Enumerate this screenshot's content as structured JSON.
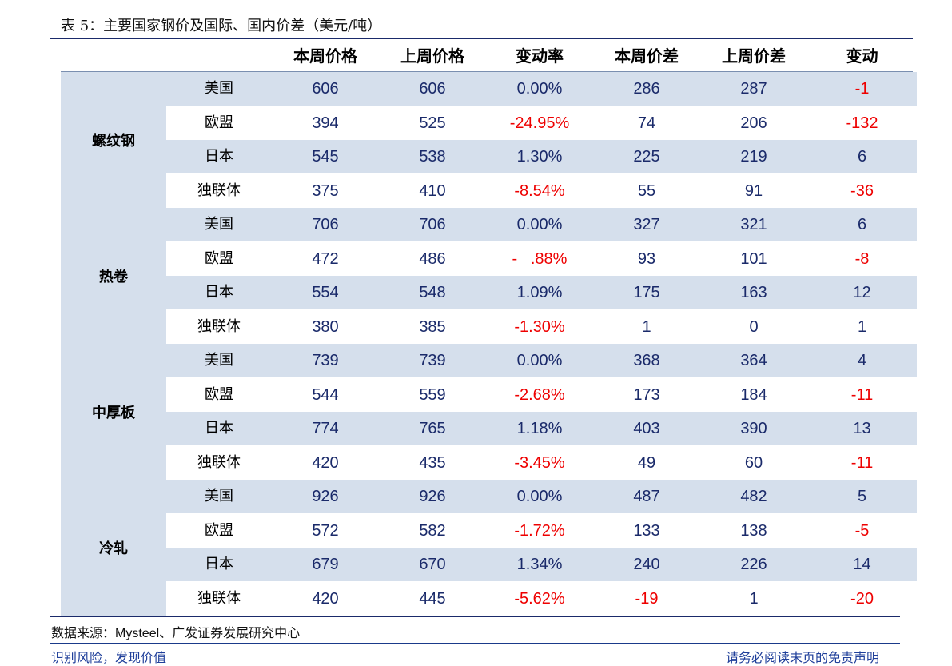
{
  "title": "表 5：主要国家钢价及国际、国内价差（美元/吨）",
  "columns": [
    "本周价格",
    "上周价格",
    "变动率",
    "本周价差",
    "上周价差",
    "变动"
  ],
  "groups": [
    {
      "name": "螺纹钢",
      "rows": [
        {
          "country": "美国",
          "this_price": "606",
          "last_price": "606",
          "change_rate": "0.00%",
          "this_spread": "286",
          "last_spread": "287",
          "change": "-1"
        },
        {
          "country": "欧盟",
          "this_price": "394",
          "last_price": "525",
          "change_rate": "-24.95%",
          "this_spread": "74",
          "last_spread": "206",
          "change": "-132"
        },
        {
          "country": "日本",
          "this_price": "545",
          "last_price": "538",
          "change_rate": "1.30%",
          "this_spread": "225",
          "last_spread": "219",
          "change": "6"
        },
        {
          "country": "独联体",
          "this_price": "375",
          "last_price": "410",
          "change_rate": "-8.54%",
          "this_spread": "55",
          "last_spread": "91",
          "change": "-36"
        }
      ]
    },
    {
      "name": "热卷",
      "rows": [
        {
          "country": "美国",
          "this_price": "706",
          "last_price": "706",
          "change_rate": "0.00%",
          "this_spread": "327",
          "last_spread": "321",
          "change": "6"
        },
        {
          "country": "欧盟",
          "this_price": "472",
          "last_price": "486",
          "change_rate": "-   .88%",
          "this_spread": "93",
          "last_spread": "101",
          "change": "-8"
        },
        {
          "country": "日本",
          "this_price": "554",
          "last_price": "548",
          "change_rate": "1.09%",
          "this_spread": "175",
          "last_spread": "163",
          "change": "12"
        },
        {
          "country": "独联体",
          "this_price": "380",
          "last_price": "385",
          "change_rate": "-1.30%",
          "this_spread": "1",
          "last_spread": "0",
          "change": "1"
        }
      ]
    },
    {
      "name": "中厚板",
      "rows": [
        {
          "country": "美国",
          "this_price": "739",
          "last_price": "739",
          "change_rate": "0.00%",
          "this_spread": "368",
          "last_spread": "364",
          "change": "4"
        },
        {
          "country": "欧盟",
          "this_price": "544",
          "last_price": "559",
          "change_rate": "-2.68%",
          "this_spread": "173",
          "last_spread": "184",
          "change": "-11"
        },
        {
          "country": "日本",
          "this_price": "774",
          "last_price": "765",
          "change_rate": "1.18%",
          "this_spread": "403",
          "last_spread": "390",
          "change": "13"
        },
        {
          "country": "独联体",
          "this_price": "420",
          "last_price": "435",
          "change_rate": "-3.45%",
          "this_spread": "49",
          "last_spread": "60",
          "change": "-11"
        }
      ]
    },
    {
      "name": "冷轧",
      "rows": [
        {
          "country": "美国",
          "this_price": "926",
          "last_price": "926",
          "change_rate": "0.00%",
          "this_spread": "487",
          "last_spread": "482",
          "change": "5"
        },
        {
          "country": "欧盟",
          "this_price": "572",
          "last_price": "582",
          "change_rate": "-1.72%",
          "this_spread": "133",
          "last_spread": "138",
          "change": "-5"
        },
        {
          "country": "日本",
          "this_price": "679",
          "last_price": "670",
          "change_rate": "1.34%",
          "this_spread": "240",
          "last_spread": "226",
          "change": "14"
        },
        {
          "country": "独联体",
          "this_price": "420",
          "last_price": "445",
          "change_rate": "-5.62%",
          "this_spread": "-19",
          "last_spread": "1",
          "change": "-20"
        }
      ]
    }
  ],
  "source": {
    "label": "数据来源：",
    "text_latin": "Mysteel",
    "text_rest": "、广发证券发展研究中心"
  },
  "footer": {
    "left": "识别风险，发现价值",
    "right": "请务必阅读末页的免责声明"
  },
  "colors": {
    "navy": "#1a2a6a",
    "shade": "#d5dfec",
    "negative": "#ee0000"
  }
}
